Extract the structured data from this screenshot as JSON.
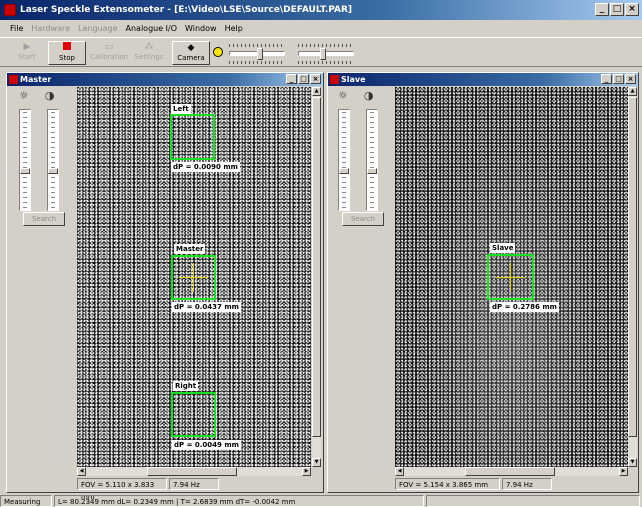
{
  "window": {
    "title": "Laser Speckle Extensometer - [E:\\Video\\LSE\\Source\\DEFAULT.PAR]"
  },
  "menu": {
    "items": [
      {
        "label": "File",
        "enabled": true
      },
      {
        "label": "Hardware",
        "enabled": false
      },
      {
        "label": "Language",
        "enabled": false
      },
      {
        "label": "Analogue I/O",
        "enabled": true
      },
      {
        "label": "Window",
        "enabled": true
      },
      {
        "label": "Help",
        "enabled": true
      }
    ]
  },
  "toolbar": {
    "start_label": "Start",
    "stop_label": "Stop",
    "calibration_label": "Calibration",
    "settings_label": "Settings",
    "camera_label": "Camera",
    "indicator_color": "#ffe800"
  },
  "master": {
    "title": "Master",
    "search_label": "Search",
    "rois": [
      {
        "name": "Left",
        "dp": "dP = 0.0090 mm"
      },
      {
        "name": "Master",
        "dp": "dP = 0.0437 mm"
      },
      {
        "name": "Right",
        "dp": "dP = 0.0049 mm"
      }
    ],
    "fov": "FOV = 5.110 x 3.833 mm",
    "rate": "7.94 Hz"
  },
  "slave": {
    "title": "Slave",
    "search_label": "Search",
    "roi": {
      "name": "Slave",
      "dp": "dP = 0.2786 mm"
    },
    "fov": "FOV = 5.154 x 3.865 mm",
    "rate": "7.94 Hz"
  },
  "status": {
    "state": "Measuring",
    "values": "L= 80.2349 mm  dL= 0.2349 mm  |  T= 2.6839 mm  dT= -0.0042 mm"
  },
  "icons": {
    "brightness": "sun-icon",
    "contrast": "contrast-icon",
    "start": "play-icon",
    "stop": "stop-icon",
    "camera": "camera-icon"
  }
}
